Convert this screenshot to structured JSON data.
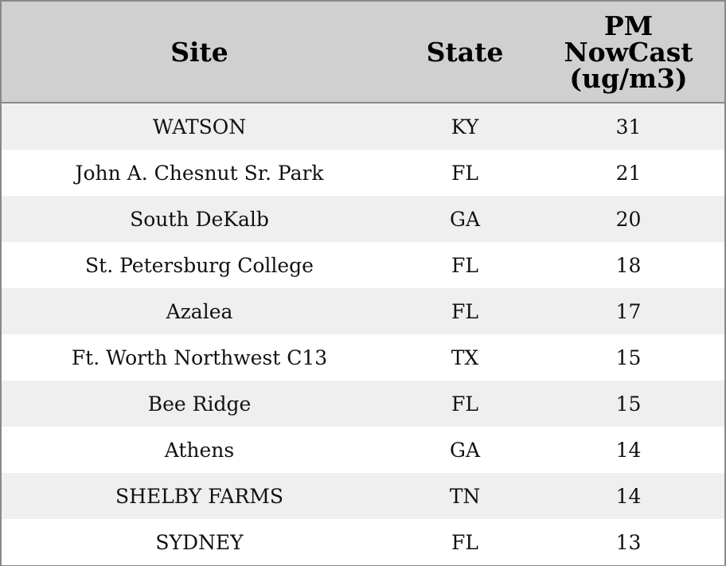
{
  "table": {
    "headers": [
      "Site",
      "State",
      "PM NowCast (ug/m3)"
    ],
    "rows": [
      [
        "WATSON",
        "KY",
        31
      ],
      [
        "John A. Chesnut Sr. Park",
        "FL",
        21
      ],
      [
        "South DeKalb",
        "GA",
        20
      ],
      [
        "St. Petersburg College",
        "FL",
        18
      ],
      [
        "Azalea",
        "FL",
        17
      ],
      [
        "Ft. Worth Northwest C13",
        "TX",
        15
      ],
      [
        "Bee Ridge",
        "FL",
        15
      ],
      [
        "Athens",
        "GA",
        14
      ],
      [
        "SHELBY FARMS",
        "TN",
        14
      ],
      [
        "SYDNEY",
        "FL",
        13
      ]
    ]
  }
}
